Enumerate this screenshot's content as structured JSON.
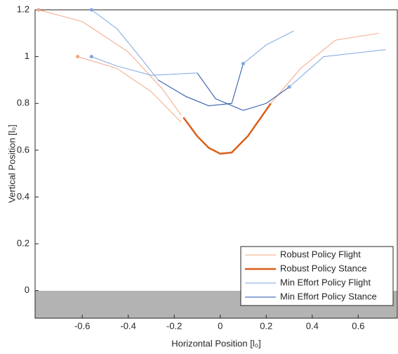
{
  "chart_data": {
    "type": "line",
    "xlabel": "Horizontal Position [l₀]",
    "ylabel": "Vertical Position [l₀]",
    "xlim": [
      -0.805,
      0.77
    ],
    "ylim": [
      -0.118,
      1.2
    ],
    "xticks": [
      -0.6,
      -0.4,
      -0.2,
      0,
      0.2,
      0.4,
      0.6
    ],
    "yticks": [
      0,
      0.2,
      0.4,
      0.6,
      0.8,
      1,
      1.2
    ],
    "legend": "lower-right",
    "series": [
      {
        "name": "Robust Policy Flight",
        "color": "#f4a582",
        "width": 1,
        "marker": true,
        "x": [
          -0.79,
          -0.6,
          -0.4,
          -0.25,
          -0.17
        ],
        "values": [
          1.2,
          1.15,
          1.02,
          0.86,
          0.75
        ]
      },
      {
        "name": "Robust Policy Stance",
        "color": "#d95f1a",
        "width": 2.5,
        "marker": false,
        "x": [
          -0.16,
          -0.1,
          -0.05,
          0.0,
          0.05,
          0.12,
          0.22
        ],
        "values": [
          0.74,
          0.66,
          0.61,
          0.585,
          0.59,
          0.66,
          0.8
        ]
      },
      {
        "name": "Min Effort Policy Flight",
        "color": "#7ea6e0",
        "width": 1,
        "marker": true,
        "x": [
          -0.56,
          -0.45,
          -0.35,
          -0.27
        ],
        "values": [
          1.2,
          1.12,
          1.0,
          0.9
        ]
      },
      {
        "name": "Min Effort Policy Stance",
        "color": "#1f4fa8",
        "width": 1,
        "marker": false,
        "x": [
          -0.27,
          -0.15,
          -0.05,
          0.05,
          0.1
        ],
        "values": [
          0.9,
          0.83,
          0.79,
          0.8,
          0.97
        ]
      },
      {
        "color": "#f4a582",
        "width": 1,
        "marker": true,
        "x": [
          -0.62,
          -0.45,
          -0.3,
          -0.17
        ],
        "values": [
          1.0,
          0.95,
          0.85,
          0.72
        ]
      },
      {
        "color": "#f4a582",
        "width": 1,
        "marker": false,
        "x": [
          0.22,
          0.35,
          0.5,
          0.69
        ],
        "values": [
          0.8,
          0.95,
          1.07,
          1.1
        ]
      },
      {
        "color": "#7ea6e0",
        "width": 1,
        "marker": true,
        "x": [
          -0.56,
          -0.45,
          -0.3,
          -0.1
        ],
        "values": [
          1.0,
          0.96,
          0.92,
          0.93
        ]
      },
      {
        "color": "#1f4fa8",
        "width": 1,
        "marker": false,
        "x": [
          -0.1,
          -0.02,
          0.1,
          0.2,
          0.3
        ],
        "values": [
          0.93,
          0.82,
          0.77,
          0.8,
          0.87
        ]
      },
      {
        "color": "#7ea6e0",
        "width": 1,
        "marker": true,
        "x": [
          0.1,
          0.2,
          0.32
        ],
        "values": [
          0.97,
          1.05,
          1.11
        ]
      },
      {
        "color": "#7ea6e0",
        "width": 1,
        "marker": true,
        "x": [
          0.3,
          0.45,
          0.72
        ],
        "values": [
          0.87,
          1.0,
          1.03
        ]
      }
    ]
  }
}
